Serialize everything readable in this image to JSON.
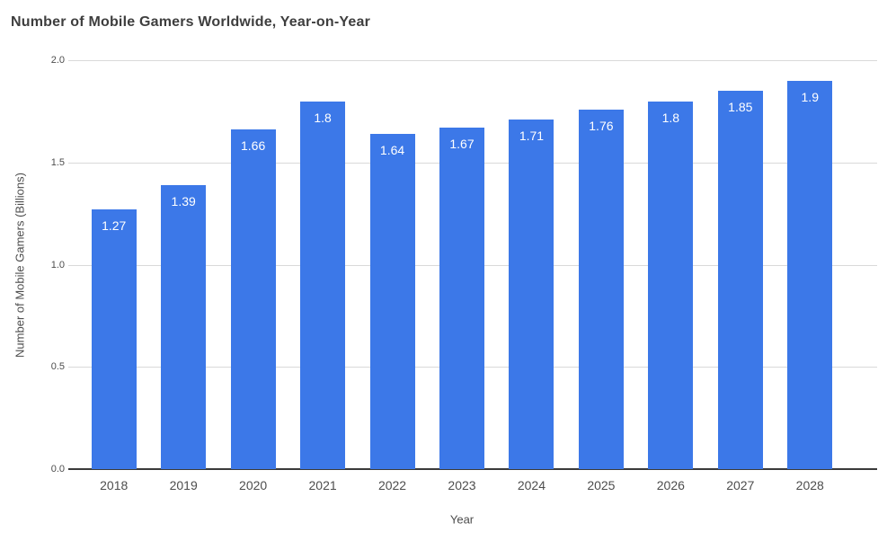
{
  "chart_data": {
    "type": "bar",
    "title": "Number of Mobile Gamers Worldwide, Year-on-Year",
    "categories": [
      "2018",
      "2019",
      "2020",
      "2021",
      "2022",
      "2023",
      "2024",
      "2025",
      "2026",
      "2027",
      "2028"
    ],
    "values": [
      1.27,
      1.39,
      1.66,
      1.8,
      1.64,
      1.67,
      1.71,
      1.76,
      1.8,
      1.85,
      1.9
    ],
    "bar_labels": [
      "1.27",
      "1.39",
      "1.66",
      "1.8",
      "1.64",
      "1.67",
      "1.71",
      "1.76",
      "1.8",
      "1.85",
      "1.9"
    ],
    "xlabel": "Year",
    "ylabel": "Number of Mobile Gamers (Billions)",
    "ylim": [
      0.0,
      2.0
    ],
    "yticks": [
      0.0,
      0.5,
      1.0,
      1.5,
      2.0
    ],
    "ytick_labels": [
      "0.0",
      "0.5",
      "1.0",
      "1.5",
      "2.0"
    ],
    "grid": true,
    "legend": false,
    "colors": {
      "bar": "#3c78e8",
      "bar_label": "#ffffff",
      "gridline": "#d9d9d9",
      "baseline": "#3a3a3a",
      "title": "#3e3e3e",
      "axis_text": "#4d4d4d"
    }
  }
}
